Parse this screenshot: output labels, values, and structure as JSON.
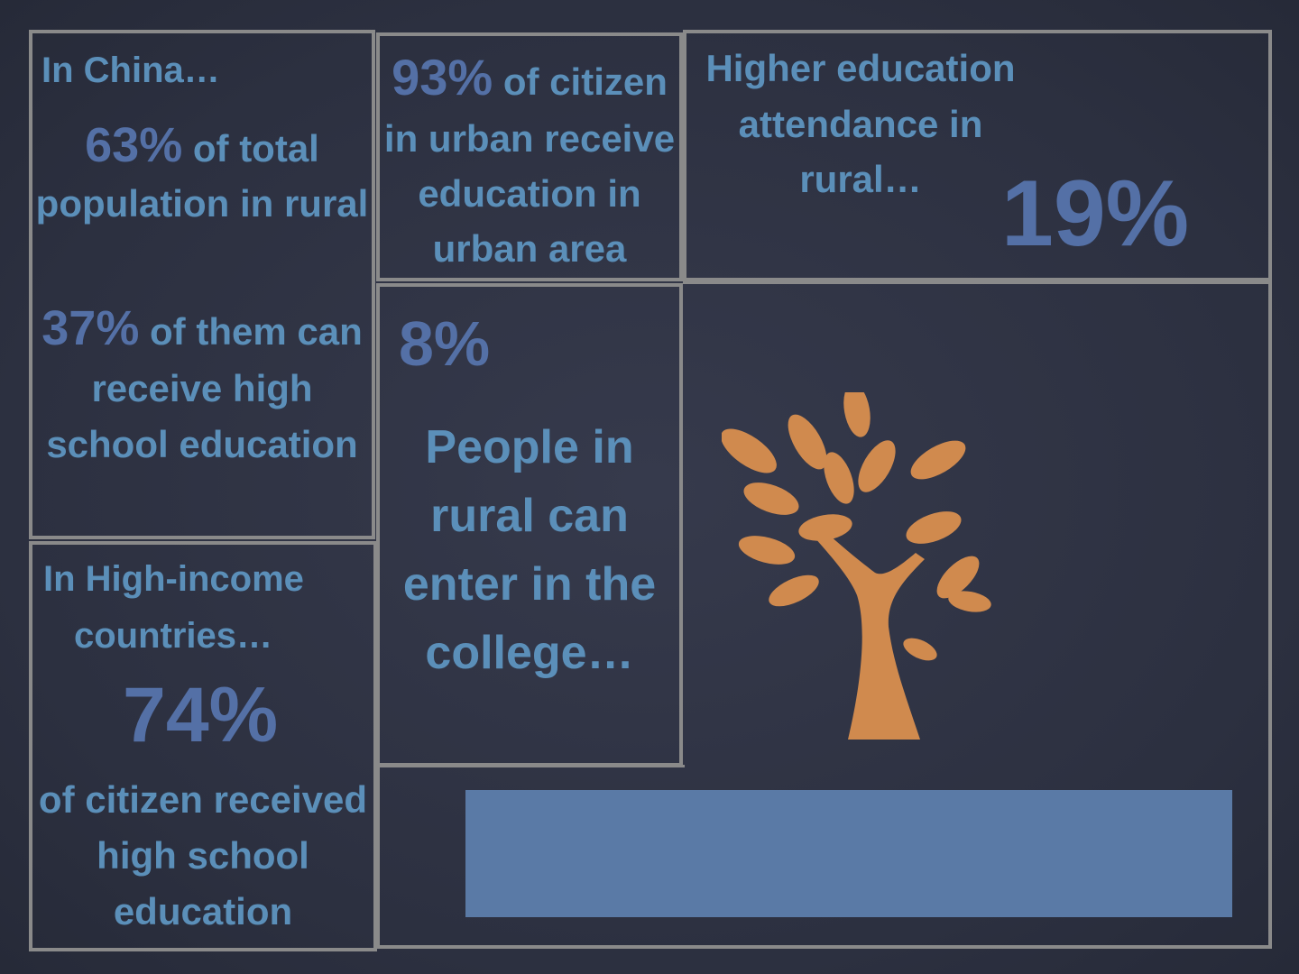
{
  "panels": {
    "china": {
      "intro": "In China…",
      "stat1_pct": "63%",
      "stat1_rest": " of total",
      "stat1_line2": "population in rural",
      "stat2_pct": "37%",
      "stat2_rest": " of them can",
      "stat2_line2": "receive high",
      "stat2_line3": "school education"
    },
    "urban": {
      "pct": "93%",
      "rest": " of citizen",
      "line2": "in urban receive",
      "line3": "education in",
      "line4": "urban area"
    },
    "higher_ed": {
      "line1": "Higher education",
      "line2": "attendance in",
      "line3": "rural…",
      "pct": "19%"
    },
    "college": {
      "pct": "8%",
      "line1": "People in",
      "line2": "rural can",
      "line3": "enter in the",
      "line4": "college…"
    },
    "high_income": {
      "line1": "In High-income",
      "line2": "countries…",
      "pct": "74%",
      "line3": "of citizen received",
      "line4": "high school",
      "line5": "education"
    }
  },
  "graphics": {
    "tree_icon": "tree-icon",
    "tree_color": "#d08a4e",
    "bar_color": "#5a7aa6",
    "border_color": "#8a8a8a",
    "text_color": "#5b8fb9",
    "pct_color": "#5470a6"
  }
}
